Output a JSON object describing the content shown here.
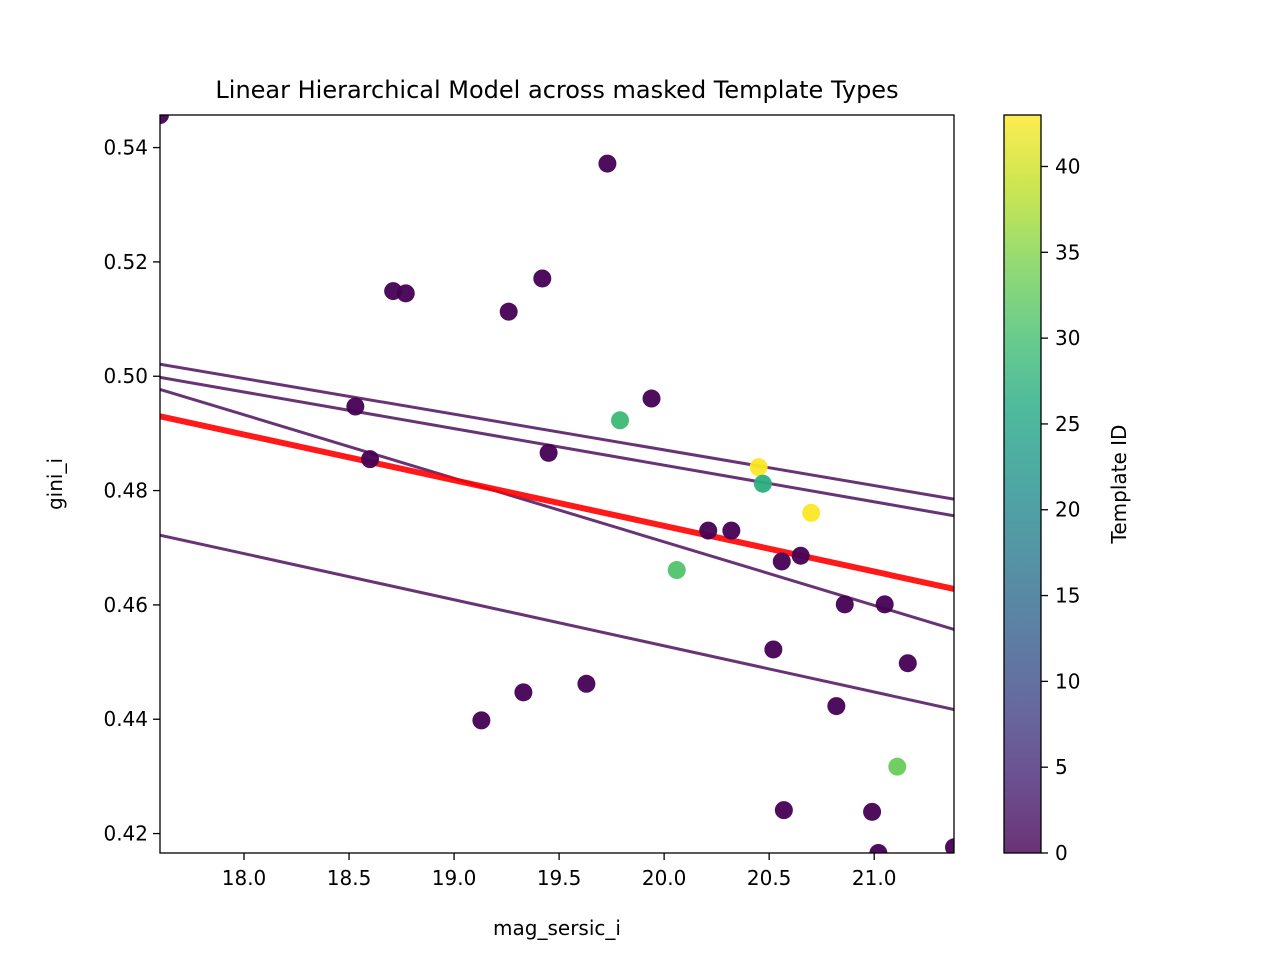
{
  "chart_data": {
    "type": "scatter",
    "title": "Linear Hierarchical Model across masked Template Types",
    "xlabel": "mag_sersic_i",
    "ylabel": "gini_i",
    "xlim": [
      17.6,
      21.38
    ],
    "ylim": [
      0.4166,
      0.5457
    ],
    "xticks": [
      18.0,
      18.5,
      19.0,
      19.5,
      20.0,
      20.5,
      21.0
    ],
    "xtick_labels": [
      "18.0",
      "18.5",
      "19.0",
      "19.5",
      "20.0",
      "20.5",
      "21.0"
    ],
    "yticks": [
      0.42,
      0.44,
      0.46,
      0.48,
      0.5,
      0.52,
      0.54
    ],
    "ytick_labels": [
      "0.42",
      "0.44",
      "0.46",
      "0.48",
      "0.50",
      "0.52",
      "0.54"
    ],
    "grid": false,
    "colorbar": {
      "label": "Template ID",
      "colormap": "viridis",
      "range": [
        0,
        43
      ],
      "ticks": [
        0,
        5,
        10,
        15,
        20,
        25,
        30,
        35,
        40
      ],
      "tick_labels": [
        "0",
        "5",
        "10",
        "15",
        "20",
        "25",
        "30",
        "35",
        "40"
      ]
    },
    "points": [
      {
        "x": 17.6,
        "y": 0.5457,
        "template": 0
      },
      {
        "x": 18.53,
        "y": 0.4947,
        "template": 0
      },
      {
        "x": 18.6,
        "y": 0.4855,
        "template": 0
      },
      {
        "x": 18.71,
        "y": 0.5149,
        "template": 0
      },
      {
        "x": 18.77,
        "y": 0.5145,
        "template": 0
      },
      {
        "x": 19.13,
        "y": 0.4398,
        "template": 0
      },
      {
        "x": 19.26,
        "y": 0.5113,
        "template": 0
      },
      {
        "x": 19.33,
        "y": 0.4447,
        "template": 0
      },
      {
        "x": 19.42,
        "y": 0.5171,
        "template": 0
      },
      {
        "x": 19.45,
        "y": 0.4866,
        "template": 0
      },
      {
        "x": 19.63,
        "y": 0.4462,
        "template": 0
      },
      {
        "x": 19.73,
        "y": 0.5372,
        "template": 0
      },
      {
        "x": 19.79,
        "y": 0.4923,
        "template": 29
      },
      {
        "x": 19.94,
        "y": 0.4961,
        "template": 0
      },
      {
        "x": 20.06,
        "y": 0.4661,
        "template": 31
      },
      {
        "x": 20.21,
        "y": 0.473,
        "template": 0
      },
      {
        "x": 20.32,
        "y": 0.473,
        "template": 0
      },
      {
        "x": 20.45,
        "y": 0.4841,
        "template": 43
      },
      {
        "x": 20.47,
        "y": 0.4812,
        "template": 27
      },
      {
        "x": 20.52,
        "y": 0.4522,
        "template": 0
      },
      {
        "x": 20.56,
        "y": 0.4676,
        "template": 0
      },
      {
        "x": 20.57,
        "y": 0.4241,
        "template": 0
      },
      {
        "x": 20.65,
        "y": 0.4686,
        "template": 0
      },
      {
        "x": 20.7,
        "y": 0.4761,
        "template": 43
      },
      {
        "x": 20.82,
        "y": 0.4423,
        "template": 0
      },
      {
        "x": 20.86,
        "y": 0.4601,
        "template": 0
      },
      {
        "x": 20.99,
        "y": 0.4238,
        "template": 0
      },
      {
        "x": 21.02,
        "y": 0.4166,
        "template": 0
      },
      {
        "x": 21.05,
        "y": 0.4601,
        "template": 0
      },
      {
        "x": 21.11,
        "y": 0.4317,
        "template": 33
      },
      {
        "x": 21.16,
        "y": 0.4498,
        "template": 0
      },
      {
        "x": 21.38,
        "y": 0.4176,
        "template": 0
      }
    ],
    "template_lines": [
      {
        "x": [
          17.6,
          21.38
        ],
        "y": [
          0.5021,
          0.4785
        ]
      },
      {
        "x": [
          17.6,
          21.38
        ],
        "y": [
          0.4998,
          0.4756
        ]
      },
      {
        "x": [
          17.6,
          21.38
        ],
        "y": [
          0.4977,
          0.4557
        ]
      },
      {
        "x": [
          17.6,
          21.38
        ],
        "y": [
          0.4722,
          0.4417
        ]
      }
    ],
    "fit_line": {
      "x": [
        17.6,
        21.38
      ],
      "y": [
        0.493,
        0.4628
      ],
      "color": "#ff0000"
    }
  }
}
